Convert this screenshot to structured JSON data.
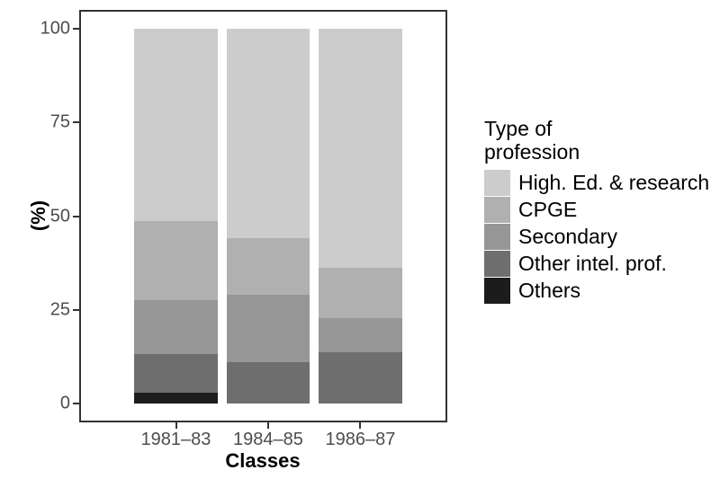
{
  "chart_data": {
    "type": "bar",
    "stacked": true,
    "title": "",
    "xlabel": "Classes",
    "ylabel": "(%)",
    "ylim": [
      0,
      100
    ],
    "y_ticks": [
      0,
      25,
      50,
      75,
      100
    ],
    "grid": false,
    "legend_position": "right",
    "legend_title": "Type of profession",
    "categories": [
      "1981–83",
      "1984–85",
      "1986–87"
    ],
    "series": [
      {
        "name": "High. Ed. & research",
        "color": "#cccccc",
        "values": [
          51.3,
          55.9,
          63.7
        ]
      },
      {
        "name": "CPGE",
        "color": "#b0b0b0",
        "values": [
          21.2,
          15.0,
          13.6
        ]
      },
      {
        "name": "Secondary",
        "color": "#969696",
        "values": [
          14.4,
          18.1,
          8.9
        ]
      },
      {
        "name": "Other intel. prof.",
        "color": "#6e6e6e",
        "values": [
          10.1,
          11.0,
          13.8
        ]
      },
      {
        "name": "Others",
        "color": "#1c1c1c",
        "values": [
          3.0,
          0.0,
          0.0
        ]
      }
    ]
  },
  "legend": {
    "title_line1": "Type of",
    "title_line2": "profession"
  },
  "colors": {
    "axis_text": "#4d4d4d",
    "axis_title": "#000000",
    "panel_border": "#333333",
    "tick_mark": "#333333",
    "background": "#ffffff"
  }
}
